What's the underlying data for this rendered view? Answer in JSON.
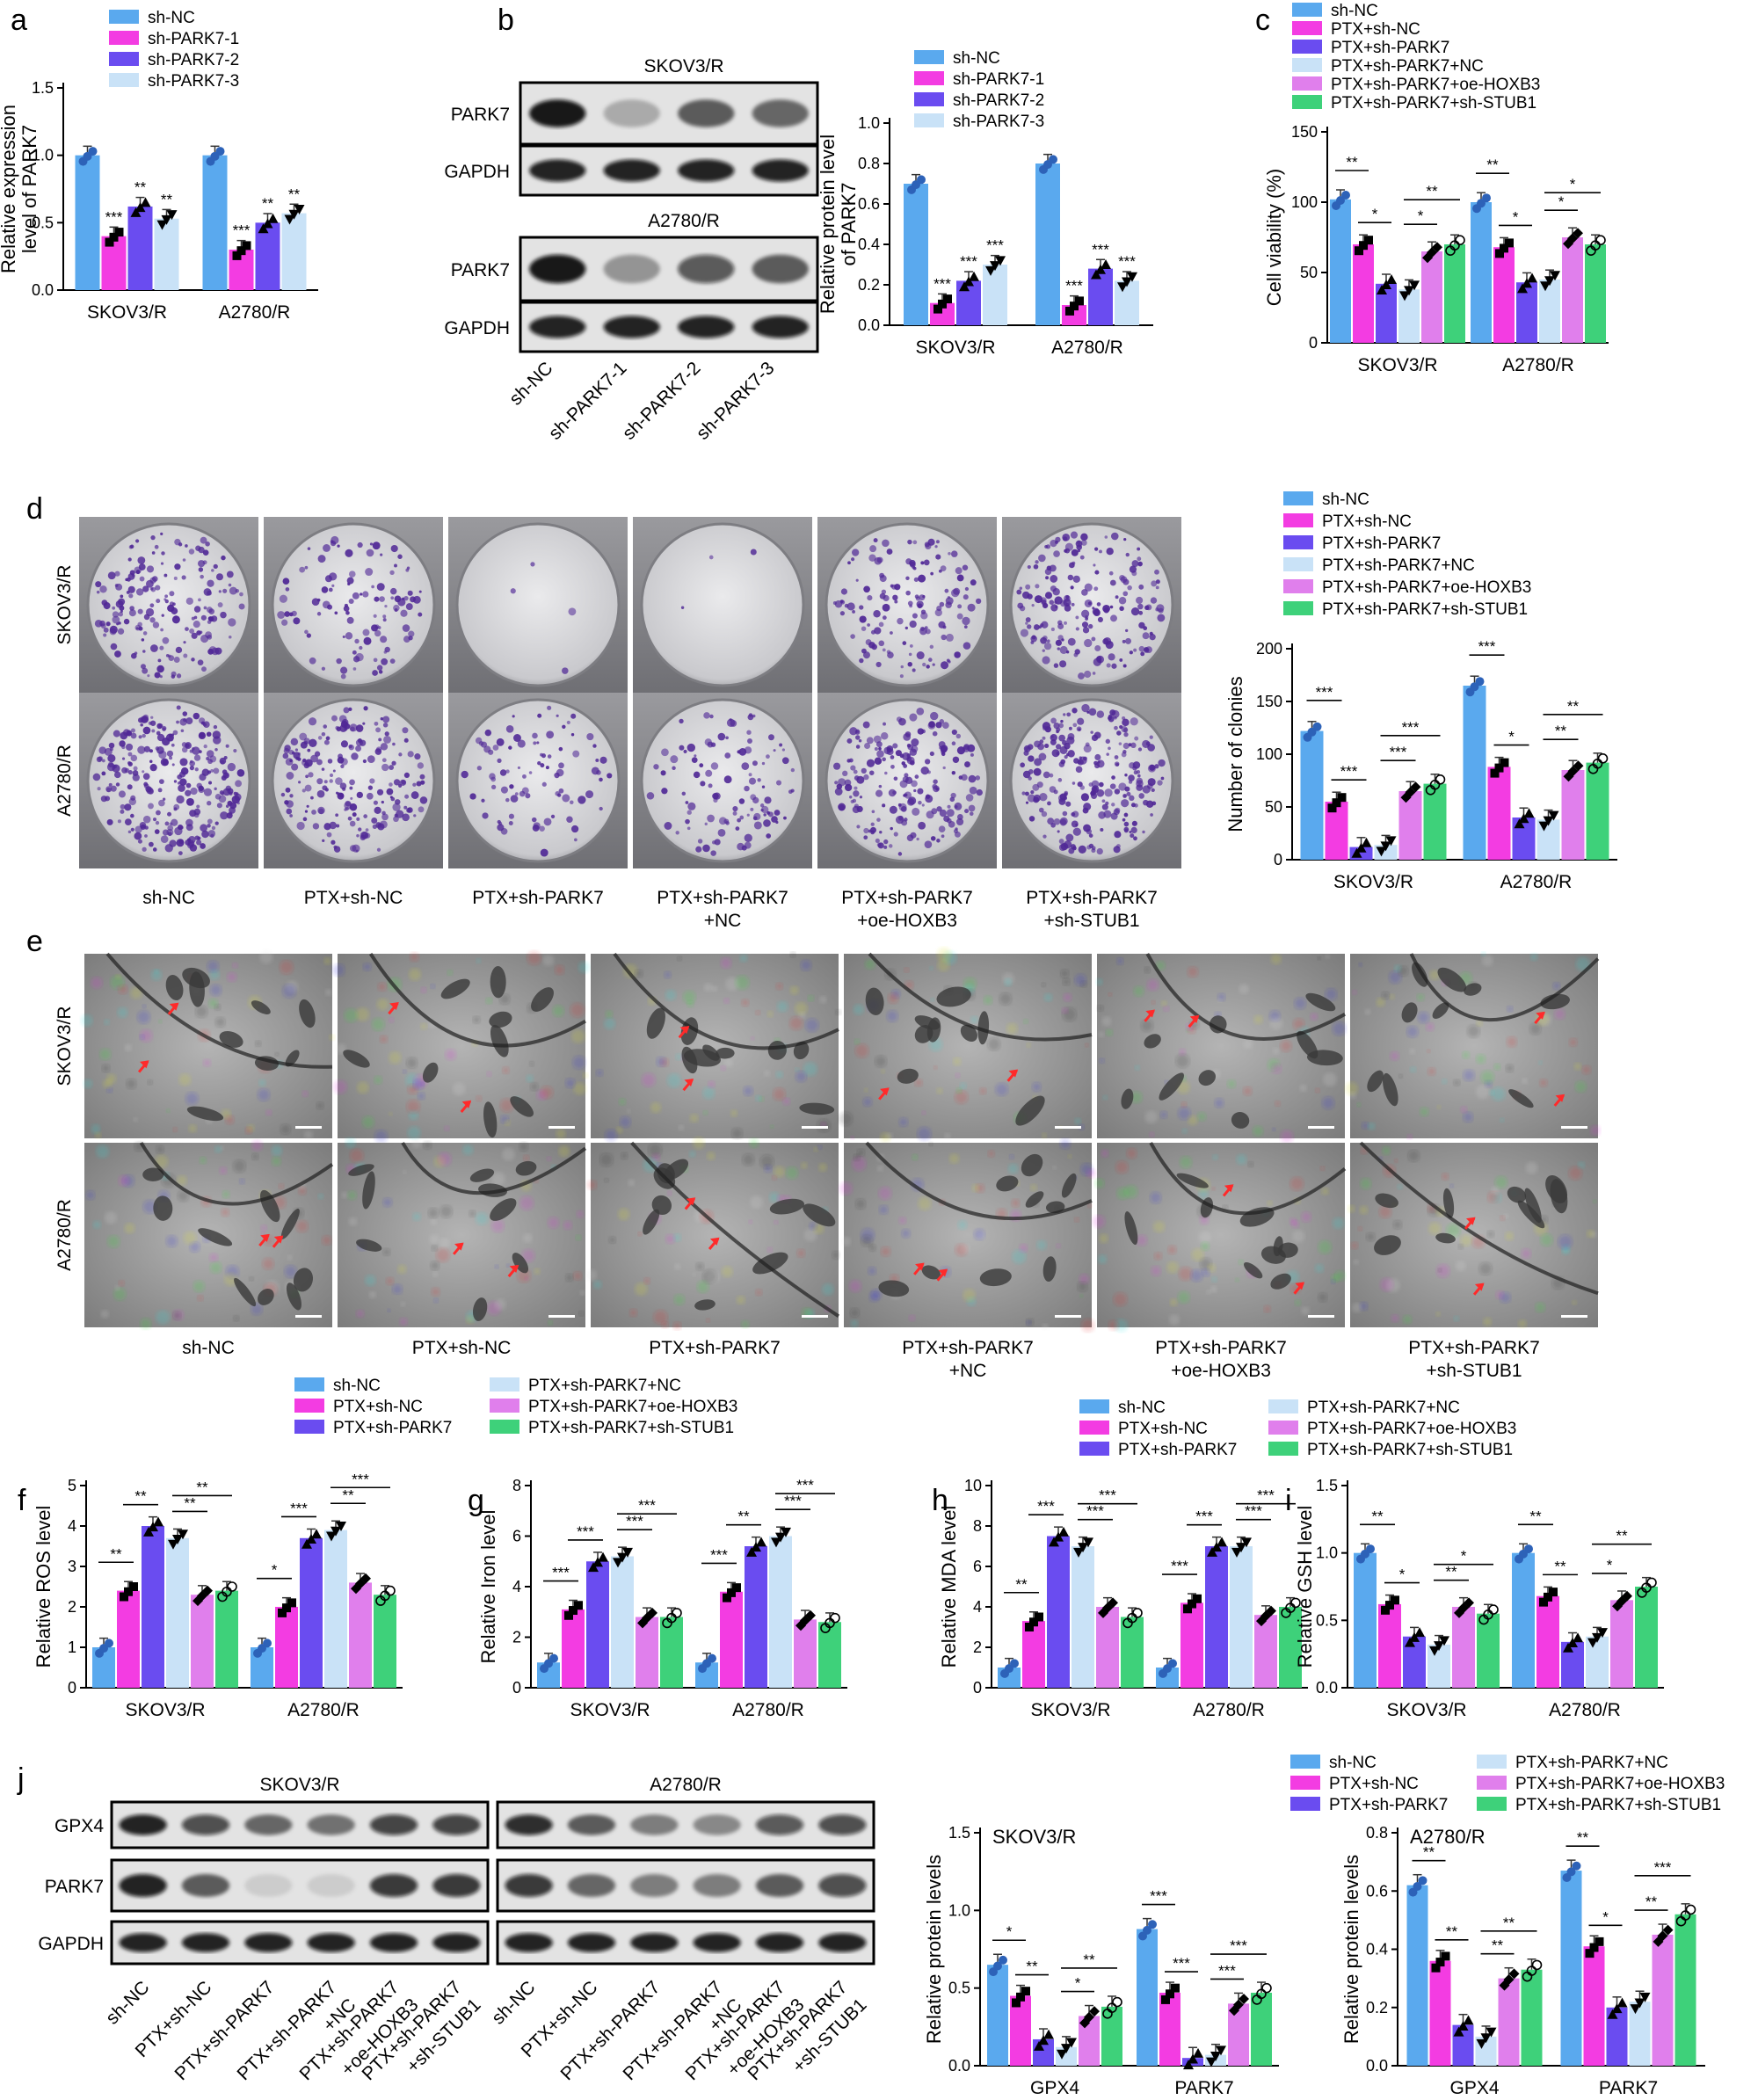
{
  "letters": [
    "a",
    "b",
    "c",
    "d",
    "e",
    "f",
    "g",
    "h",
    "i",
    "j"
  ],
  "colors": [
    "#5aa9ee",
    "#f33ce2",
    "#6a4cf0",
    "#c9e2f7",
    "#e07fec",
    "#3ed17a"
  ],
  "groups_a": [
    "sh-NC",
    "sh-PARK7-1",
    "sh-PARK7-2",
    "sh-PARK7-3"
  ],
  "groups_6": [
    "sh-NC",
    "PTX+sh-NC",
    "PTX+sh-PARK7",
    "PTX+sh-PARK7+NC",
    "PTX+sh-PARK7+oe-HOXB3",
    "PTX+sh-PARK7+sh-STUB1"
  ],
  "blot_b": {
    "title_top": "SKOV3/R",
    "title_bottom": "A2780/R",
    "rows": [
      "PARK7",
      "GAPDH",
      "PARK7",
      "GAPDH"
    ],
    "lanes": [
      "sh-NC",
      "sh-PARK7-1",
      "sh-PARK7-2",
      "sh-PARK7-3"
    ]
  },
  "plates_d": {
    "rows": [
      "SKOV3/R",
      "A2780/R"
    ],
    "cols": [
      "sh-NC",
      "PTX+sh-NC",
      "PTX+sh-PARK7",
      "PTX+sh-PARK7\n+NC",
      "PTX+sh-PARK7\n+oe-HOXB3",
      "PTX+sh-PARK7\n+sh-STUB1"
    ]
  },
  "tem_e": {
    "rows": [
      "SKOV3/R",
      "A2780/R"
    ],
    "cols": [
      "sh-NC",
      "PTX+sh-NC",
      "PTX+sh-PARK7",
      "PTX+sh-PARK7\n+NC",
      "PTX+sh-PARK7\n+oe-HOXB3",
      "PTX+sh-PARK7\n+sh-STUB1"
    ]
  },
  "blot_j": {
    "titles": [
      "SKOV3/R",
      "A2780/R"
    ],
    "rows": [
      "GPX4",
      "PARK7",
      "GAPDH"
    ],
    "lanes": [
      "sh-NC",
      "PTX+sh-NC",
      "PTX+sh-PARK7",
      "PTX+sh-PARK7\n+NC",
      "PTX+sh-PARK7\n+oe-HOXB3",
      "PTX+sh-PARK7\n+sh-STUB1"
    ]
  },
  "chart_data": [
    {
      "id": "a",
      "type": "bar",
      "ylabel": "Relative expression\nlevel of PARK7",
      "ylim": [
        0,
        1.5
      ],
      "yticks": [
        "0.0",
        "0.5",
        "1.0",
        "1.5"
      ],
      "categories": [
        "SKOV3/R",
        "A2780/R"
      ],
      "series": [
        {
          "name": "sh-NC",
          "values": [
            1.0,
            1.0
          ]
        },
        {
          "name": "sh-PARK7-1",
          "values": [
            0.4,
            0.3
          ]
        },
        {
          "name": "sh-PARK7-2",
          "values": [
            0.62,
            0.5
          ]
        },
        {
          "name": "sh-PARK7-3",
          "values": [
            0.53,
            0.57
          ]
        }
      ],
      "sig": [
        [
          "",
          "***",
          "**",
          "**"
        ],
        [
          "",
          "***",
          "**",
          "**"
        ]
      ]
    },
    {
      "id": "b",
      "type": "bar",
      "ylabel": "Relative protein level\nof PARK7",
      "ylim": [
        0,
        1.0
      ],
      "yticks": [
        "0.0",
        "0.2",
        "0.4",
        "0.6",
        "0.8",
        "1.0"
      ],
      "categories": [
        "SKOV3/R",
        "A2780/R"
      ],
      "series": [
        {
          "name": "sh-NC",
          "values": [
            0.7,
            0.8
          ]
        },
        {
          "name": "sh-PARK7-1",
          "values": [
            0.11,
            0.1
          ]
        },
        {
          "name": "sh-PARK7-2",
          "values": [
            0.22,
            0.28
          ]
        },
        {
          "name": "sh-PARK7-3",
          "values": [
            0.3,
            0.22
          ]
        }
      ],
      "sig": [
        [
          "",
          "***",
          "***",
          "***"
        ],
        [
          "",
          "***",
          "***",
          "***"
        ]
      ]
    },
    {
      "id": "c",
      "type": "bar",
      "ylabel": "Cell viability (%)",
      "ylim": [
        0,
        150
      ],
      "yticks": [
        "0",
        "50",
        "100",
        "150"
      ],
      "categories": [
        "SKOV3/R",
        "A2780/R"
      ],
      "series": [
        {
          "name": "sh-NC",
          "values": [
            102,
            100
          ]
        },
        {
          "name": "PTX+sh-NC",
          "values": [
            70,
            68
          ]
        },
        {
          "name": "PTX+sh-PARK7",
          "values": [
            42,
            43
          ]
        },
        {
          "name": "PTX+sh-PARK7+NC",
          "values": [
            38,
            45
          ]
        },
        {
          "name": "PTX+sh-PARK7+oe-HOXB3",
          "values": [
            65,
            75
          ]
        },
        {
          "name": "PTX+sh-PARK7+sh-STUB1",
          "values": [
            70,
            70
          ]
        }
      ],
      "brackets": [
        [
          0,
          1,
          "**"
        ],
        [
          1,
          2,
          "*"
        ],
        [
          3,
          4,
          "*"
        ],
        [
          3,
          5,
          "**"
        ],
        [
          0,
          1,
          "**"
        ],
        [
          1,
          2,
          "*"
        ],
        [
          3,
          4,
          "*"
        ],
        [
          3,
          5,
          "*"
        ]
      ]
    },
    {
      "id": "d",
      "type": "bar",
      "ylabel": "Number of clonies",
      "ylim": [
        0,
        200
      ],
      "yticks": [
        "0",
        "50",
        "100",
        "150",
        "200"
      ],
      "categories": [
        "SKOV3/R",
        "A2780/R"
      ],
      "series": [
        {
          "name": "sh-NC",
          "values": [
            122,
            165
          ]
        },
        {
          "name": "PTX+sh-NC",
          "values": [
            55,
            88
          ]
        },
        {
          "name": "PTX+sh-PARK7",
          "values": [
            12,
            40
          ]
        },
        {
          "name": "PTX+sh-PARK7+NC",
          "values": [
            14,
            38
          ]
        },
        {
          "name": "PTX+sh-PARK7+oe-HOXB3",
          "values": [
            65,
            85
          ]
        },
        {
          "name": "PTX+sh-PARK7+sh-STUB1",
          "values": [
            72,
            92
          ]
        }
      ],
      "brackets": [
        [
          0,
          1,
          "***"
        ],
        [
          1,
          2,
          "***"
        ],
        [
          3,
          4,
          "***"
        ],
        [
          3,
          5,
          "***"
        ],
        [
          0,
          1,
          "***"
        ],
        [
          1,
          2,
          "*"
        ],
        [
          3,
          4,
          "**"
        ],
        [
          3,
          5,
          "**"
        ]
      ]
    },
    {
      "id": "f",
      "type": "bar",
      "ylabel": "Relative ROS level",
      "ylim": [
        0,
        5
      ],
      "yticks": [
        "0",
        "1",
        "2",
        "3",
        "4",
        "5"
      ],
      "categories": [
        "SKOV3/R",
        "A2780/R"
      ],
      "series": [
        {
          "name": "sh-NC",
          "values": [
            1.0,
            1.0
          ]
        },
        {
          "name": "PTX+sh-NC",
          "values": [
            2.4,
            2.0
          ]
        },
        {
          "name": "PTX+sh-PARK7",
          "values": [
            4.0,
            3.7
          ]
        },
        {
          "name": "PTX+sh-PARK7+NC",
          "values": [
            3.7,
            3.9
          ]
        },
        {
          "name": "PTX+sh-PARK7+oe-HOXB3",
          "values": [
            2.3,
            2.6
          ]
        },
        {
          "name": "PTX+sh-PARK7+sh-STUB1",
          "values": [
            2.4,
            2.3
          ]
        }
      ],
      "brackets": [
        [
          0,
          1,
          "**"
        ],
        [
          1,
          2,
          "**"
        ],
        [
          3,
          4,
          "**"
        ],
        [
          3,
          5,
          "**"
        ],
        [
          0,
          1,
          "*"
        ],
        [
          1,
          2,
          "***"
        ],
        [
          3,
          4,
          "**"
        ],
        [
          3,
          5,
          "***"
        ]
      ]
    },
    {
      "id": "g",
      "type": "bar",
      "ylabel": "Relative Iron level",
      "ylim": [
        0,
        8
      ],
      "yticks": [
        "0",
        "2",
        "4",
        "6",
        "8"
      ],
      "categories": [
        "SKOV3/R",
        "A2780/R"
      ],
      "series": [
        {
          "name": "sh-NC",
          "values": [
            1.0,
            1.0
          ]
        },
        {
          "name": "PTX+sh-NC",
          "values": [
            3.1,
            3.8
          ]
        },
        {
          "name": "PTX+sh-PARK7",
          "values": [
            5.0,
            5.6
          ]
        },
        {
          "name": "PTX+sh-PARK7+NC",
          "values": [
            5.2,
            6.0
          ]
        },
        {
          "name": "PTX+sh-PARK7+oe-HOXB3",
          "values": [
            2.8,
            2.7
          ]
        },
        {
          "name": "PTX+sh-PARK7+sh-STUB1",
          "values": [
            2.8,
            2.6
          ]
        }
      ],
      "brackets": [
        [
          0,
          1,
          "***"
        ],
        [
          1,
          2,
          "***"
        ],
        [
          3,
          4,
          "***"
        ],
        [
          3,
          5,
          "***"
        ],
        [
          0,
          1,
          "***"
        ],
        [
          1,
          2,
          "**"
        ],
        [
          3,
          4,
          "***"
        ],
        [
          3,
          5,
          "***"
        ]
      ]
    },
    {
      "id": "h",
      "type": "bar",
      "ylabel": "Relative MDA level",
      "ylim": [
        0,
        10
      ],
      "yticks": [
        "0",
        "2",
        "4",
        "6",
        "8",
        "10"
      ],
      "categories": [
        "SKOV3/R",
        "A2780/R"
      ],
      "series": [
        {
          "name": "sh-NC",
          "values": [
            1.0,
            1.0
          ]
        },
        {
          "name": "PTX+sh-NC",
          "values": [
            3.3,
            4.2
          ]
        },
        {
          "name": "PTX+sh-PARK7",
          "values": [
            7.5,
            7.0
          ]
        },
        {
          "name": "PTX+sh-PARK7+NC",
          "values": [
            7.0,
            7.0
          ]
        },
        {
          "name": "PTX+sh-PARK7+oe-HOXB3",
          "values": [
            4.0,
            3.6
          ]
        },
        {
          "name": "PTX+sh-PARK7+sh-STUB1",
          "values": [
            3.5,
            4.0
          ]
        }
      ],
      "brackets": [
        [
          0,
          1,
          "**"
        ],
        [
          1,
          2,
          "***"
        ],
        [
          3,
          4,
          "***"
        ],
        [
          3,
          5,
          "***"
        ],
        [
          0,
          1,
          "***"
        ],
        [
          1,
          2,
          "***"
        ],
        [
          3,
          4,
          "***"
        ],
        [
          3,
          5,
          "***"
        ]
      ]
    },
    {
      "id": "i",
      "type": "bar",
      "ylabel": "Relative GSH level",
      "ylim": [
        0,
        1.5
      ],
      "yticks": [
        "0.0",
        "0.5",
        "1.0",
        "1.5"
      ],
      "categories": [
        "SKOV3/R",
        "A2780/R"
      ],
      "series": [
        {
          "name": "sh-NC",
          "values": [
            1.0,
            1.0
          ]
        },
        {
          "name": "PTX+sh-NC",
          "values": [
            0.62,
            0.68
          ]
        },
        {
          "name": "PTX+sh-PARK7",
          "values": [
            0.38,
            0.34
          ]
        },
        {
          "name": "PTX+sh-PARK7+NC",
          "values": [
            0.32,
            0.38
          ]
        },
        {
          "name": "PTX+sh-PARK7+oe-HOXB3",
          "values": [
            0.6,
            0.65
          ]
        },
        {
          "name": "PTX+sh-PARK7+sh-STUB1",
          "values": [
            0.55,
            0.75
          ]
        }
      ],
      "brackets": [
        [
          0,
          1,
          "**"
        ],
        [
          1,
          2,
          "*"
        ],
        [
          3,
          4,
          "**"
        ],
        [
          3,
          5,
          "*"
        ],
        [
          0,
          1,
          "**"
        ],
        [
          1,
          2,
          "**"
        ],
        [
          3,
          4,
          "*"
        ],
        [
          3,
          5,
          "**"
        ]
      ]
    },
    {
      "id": "j1",
      "type": "bar",
      "title": "SKOV3/R",
      "ylabel": "Relative protein levels",
      "ylim": [
        0,
        1.5
      ],
      "yticks": [
        "0.0",
        "0.5",
        "1.0",
        "1.5"
      ],
      "categories": [
        "GPX4",
        "PARK7"
      ],
      "series": [
        {
          "name": "sh-NC",
          "values": [
            0.65,
            0.88
          ]
        },
        {
          "name": "PTX+sh-NC",
          "values": [
            0.45,
            0.47
          ]
        },
        {
          "name": "PTX+sh-PARK7",
          "values": [
            0.17,
            0.05
          ]
        },
        {
          "name": "PTX+sh-PARK7+NC",
          "values": [
            0.12,
            0.07
          ]
        },
        {
          "name": "PTX+sh-PARK7+oe-HOXB3",
          "values": [
            0.32,
            0.4
          ]
        },
        {
          "name": "PTX+sh-PARK7+sh-STUB1",
          "values": [
            0.38,
            0.47
          ]
        }
      ],
      "brackets": [
        [
          0,
          1,
          "*"
        ],
        [
          1,
          2,
          "**"
        ],
        [
          3,
          4,
          "*"
        ],
        [
          3,
          5,
          "**"
        ],
        [
          0,
          1,
          "***"
        ],
        [
          1,
          2,
          "***"
        ],
        [
          3,
          4,
          "***"
        ],
        [
          3,
          5,
          "***"
        ]
      ]
    },
    {
      "id": "j2",
      "type": "bar",
      "title": "A2780/R",
      "ylabel": "Relative protein levels",
      "ylim": [
        0,
        0.8
      ],
      "yticks": [
        "0.0",
        "0.2",
        "0.4",
        "0.6",
        "0.8"
      ],
      "categories": [
        "GPX4",
        "PARK7"
      ],
      "series": [
        {
          "name": "sh-NC",
          "values": [
            0.62,
            0.67
          ]
        },
        {
          "name": "PTX+sh-NC",
          "values": [
            0.36,
            0.41
          ]
        },
        {
          "name": "PTX+sh-PARK7",
          "values": [
            0.14,
            0.2
          ]
        },
        {
          "name": "PTX+sh-PARK7+NC",
          "values": [
            0.1,
            0.22
          ]
        },
        {
          "name": "PTX+sh-PARK7+oe-HOXB3",
          "values": [
            0.3,
            0.45
          ]
        },
        {
          "name": "PTX+sh-PARK7+sh-STUB1",
          "values": [
            0.33,
            0.52
          ]
        }
      ],
      "brackets": [
        [
          0,
          1,
          "**"
        ],
        [
          1,
          2,
          "**"
        ],
        [
          3,
          4,
          "**"
        ],
        [
          3,
          5,
          "**"
        ],
        [
          0,
          1,
          "**"
        ],
        [
          1,
          2,
          "*"
        ],
        [
          3,
          4,
          "**"
        ],
        [
          3,
          5,
          "***"
        ]
      ]
    }
  ]
}
